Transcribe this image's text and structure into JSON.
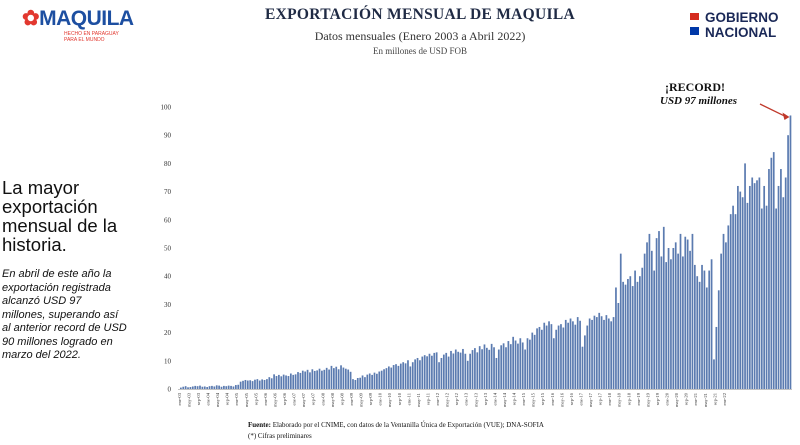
{
  "logo_left": {
    "word_main": "MAQUILA",
    "tag_line1": "HECHO EN PARAGUAY",
    "tag_line2": "PARA EL MUNDO"
  },
  "logo_right": {
    "line1": "GOBIERNO",
    "line2": "NACIONAL",
    "flag_colors": [
      "#d52b1e",
      "#ffffff",
      "#0038a8"
    ]
  },
  "header": {
    "title": "EXPORTACIÓN MENSUAL DE MAQUILA",
    "subtitle": "Datos mensuales (Enero 2003 a Abril 2022)",
    "unit": "En millones de USD FOB"
  },
  "narrative": {
    "headline": "La mayor exportación mensual de la historia.",
    "body": "En abril de este año la exportación registrada alcanzó USD 97 millones, superando así al anterior record de USD 90 millones logrado en marzo del 2022."
  },
  "callout": {
    "line1": "¡RECORD!",
    "line2": "USD 97 millones",
    "arrow_color": "#c0392b"
  },
  "footer": {
    "source_label": "Fuente:",
    "source_text": "Elaborado por el CNIME, con datos de la Ventanilla Única de Exportación (VUE); DNA-SOFIA",
    "note": "(*) Cifras preliminares"
  },
  "chart_data": {
    "type": "bar",
    "title": "EXPORTACIÓN MENSUAL DE MAQUILA",
    "ylabel": "",
    "xlabel": "",
    "bar_color": "#5b7bb0",
    "ylim": [
      0,
      100
    ],
    "yticks": [
      0,
      10,
      20,
      30,
      40,
      50,
      60,
      70,
      80,
      90,
      100
    ],
    "grid": false,
    "start": "ene-03",
    "end": "abr-22",
    "xtick_labels": [
      "ene-03",
      "may-03",
      "sep-03",
      "ene-04",
      "may-04",
      "sep-04",
      "ene-05",
      "may-05",
      "sep-05",
      "ene-06",
      "may-06",
      "sep-06",
      "ene-07",
      "may-07",
      "sep-07",
      "ene-08",
      "may-08",
      "sep-08",
      "ene-09",
      "may-09",
      "sep-09",
      "ene-10",
      "may-10",
      "sep-10",
      "ene-11",
      "may-11",
      "sep-11",
      "ene-12",
      "may-12",
      "sep-12",
      "ene-13",
      "may-13",
      "sep-13",
      "ene-14",
      "may-14",
      "sep-14",
      "ene-15",
      "may-15",
      "sep-15",
      "ene-16",
      "may-16",
      "sep-16",
      "ene-17",
      "may-17",
      "sep-17",
      "ene-18",
      "may-18",
      "sep-18",
      "ene-19",
      "may-19",
      "sep-19",
      "ene-20",
      "may-20",
      "sep-20",
      "ene-21",
      "may-21",
      "sep-21",
      "ene-22"
    ],
    "annual_values": [
      [
        0.5,
        0.8,
        1.0,
        0.6,
        0.7,
        0.9,
        1.1,
        1.0,
        1.2,
        0.8,
        0.9,
        0.7
      ],
      [
        1.0,
        1.1,
        0.9,
        1.3,
        1.2,
        0.8,
        1.1,
        1.0,
        1.2,
        1.1,
        0.9,
        1.4
      ],
      [
        1.5,
        2.6,
        2.9,
        3.2,
        3.0,
        3.1,
        2.8,
        3.3,
        3.5,
        3.0,
        3.4,
        3.2
      ],
      [
        3.5,
        4.2,
        3.8,
        5.2,
        4.6,
        5.0,
        4.5,
        5.1,
        4.8,
        4.6,
        5.5,
        5.0
      ],
      [
        5.2,
        6.0,
        5.7,
        6.5,
        6.2,
        6.8,
        5.9,
        7.0,
        6.4,
        6.6,
        7.2,
        6.5
      ],
      [
        6.8,
        7.5,
        6.9,
        8.2,
        7.4,
        7.9,
        7.0,
        8.4,
        7.6,
        7.2,
        6.9,
        6.1
      ],
      [
        3.5,
        3.2,
        3.9,
        4.0,
        4.8,
        4.2,
        5.1,
        5.5,
        5.0,
        5.8,
        5.4,
        6.2
      ],
      [
        6.5,
        7.0,
        7.4,
        8.0,
        7.6,
        8.5,
        8.8,
        8.2,
        9.0,
        9.5,
        9.1,
        10.2
      ],
      [
        8.0,
        9.5,
        10.5,
        11.0,
        10.2,
        11.5,
        12.0,
        11.6,
        12.5,
        11.8,
        12.8,
        13.0
      ],
      [
        9.5,
        11.0,
        12.2,
        12.8,
        11.5,
        13.5,
        12.6,
        14.0,
        13.2,
        12.9,
        14.2,
        12.5
      ],
      [
        10.0,
        12.5,
        13.8,
        14.5,
        13.0,
        15.2,
        14.1,
        15.8,
        14.6,
        13.9,
        16.0,
        14.8
      ],
      [
        11.0,
        14.0,
        15.5,
        16.2,
        14.8,
        17.0,
        15.9,
        18.5,
        17.2,
        16.1,
        18.0,
        16.5
      ],
      [
        14.0,
        18.0,
        17.5,
        20.0,
        19.2,
        21.5,
        22.0,
        21.0,
        23.5,
        22.5,
        24.0,
        23.0
      ],
      [
        18.0,
        21.0,
        22.5,
        23.0,
        21.8,
        24.5,
        23.5,
        25.0,
        24.0,
        22.8,
        25.5,
        24.2
      ],
      [
        15.0,
        19.0,
        22.5,
        25.0,
        24.5,
        26.0,
        25.5,
        27.0,
        25.8,
        24.5,
        26.2,
        25.0
      ],
      [
        24.0,
        25.5,
        36.0,
        30.5,
        48.0,
        38.0,
        37.0,
        39.0,
        40.0,
        36.5,
        42.0,
        38.0
      ],
      [
        40.0,
        43.0,
        48.0,
        52.0,
        55.0,
        49.0,
        42.0,
        53.5,
        56.0,
        47.0,
        57.5,
        45.0
      ],
      [
        50.0,
        46.0,
        50.0,
        52.0,
        48.0,
        55.0,
        47.0,
        54.0,
        53.0,
        49.0,
        55.0,
        44.0
      ],
      [
        40.0,
        38.0,
        44.0,
        42.0,
        36.0,
        42.0,
        46.0,
        10.5,
        22.0,
        35.0,
        48.0,
        55.0
      ],
      [
        52.0,
        58.0,
        62.0,
        65.0,
        62.0,
        72.0,
        70.0,
        68.0,
        80.0,
        66.0,
        72.0,
        75.0
      ],
      [
        73.0,
        74.0,
        75.0,
        64.0,
        72.0,
        65.0,
        78.0,
        82.0,
        84.0,
        64.0,
        72.0,
        78.0
      ],
      [
        68.0,
        75.0,
        90.0,
        97.0
      ]
    ]
  }
}
